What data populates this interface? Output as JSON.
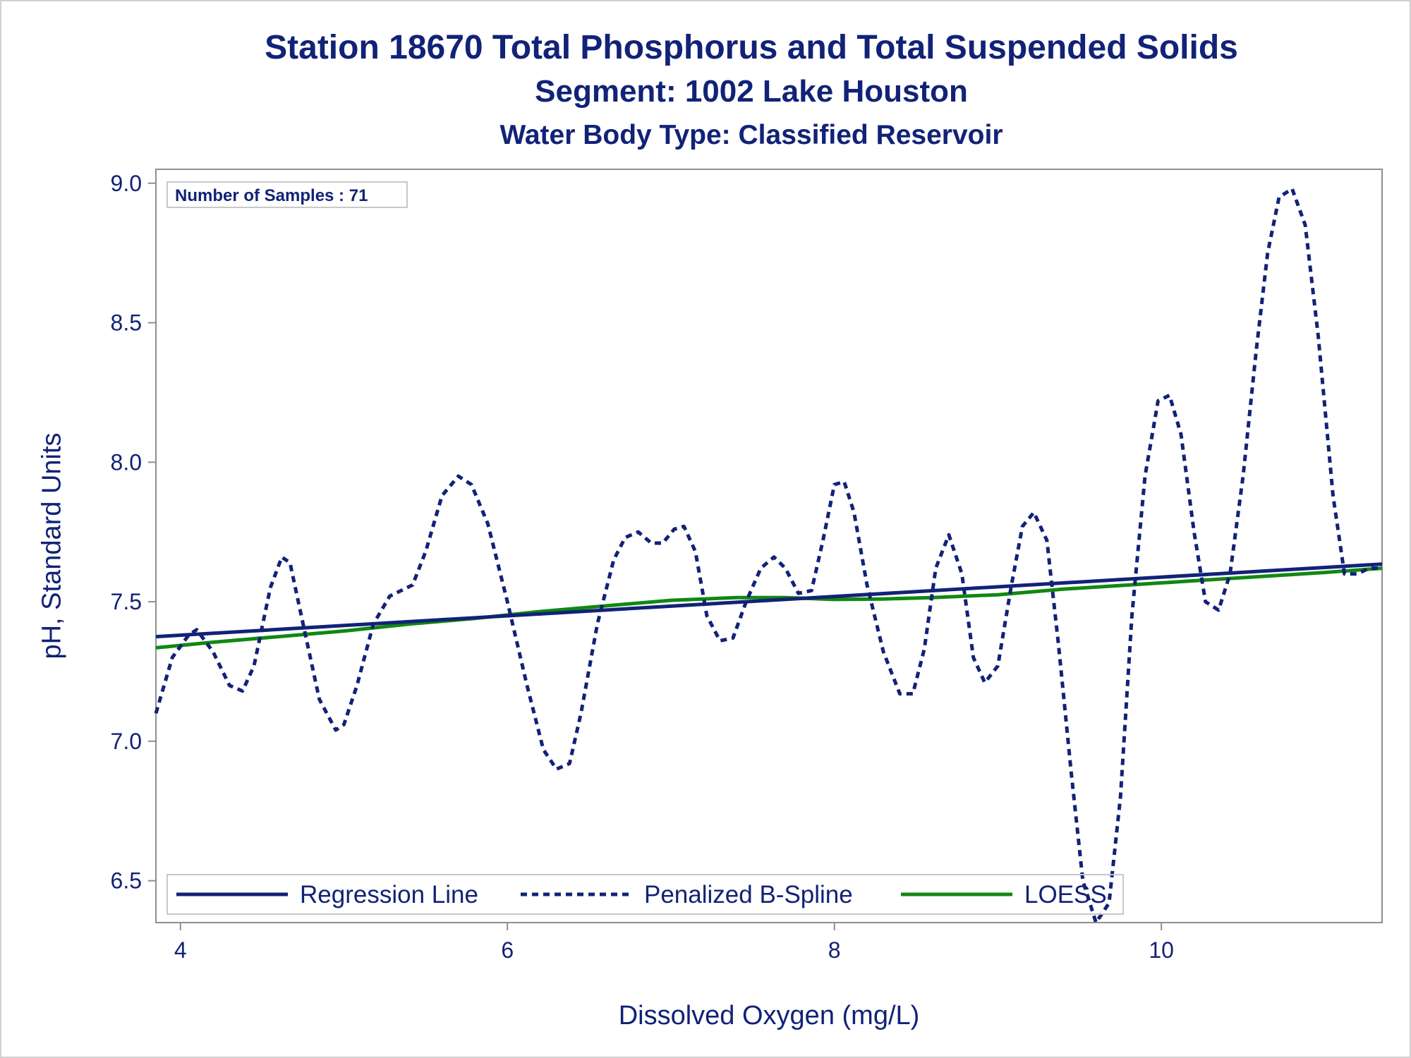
{
  "chart_data": {
    "type": "line",
    "title": "Station 18670  Total Phosphorus and Total Suspended Solids",
    "subtitle": "Segment: 1002  Lake Houston",
    "subtitle2": "Water Body Type: Classified Reservoir",
    "xlabel": "Dissolved Oxygen (mg/L)",
    "ylabel": "pH, Standard Units",
    "xlim": [
      3.85,
      11.35
    ],
    "ylim": [
      6.35,
      9.05
    ],
    "xticks": [
      4,
      6,
      8,
      10
    ],
    "xtick_labels": [
      "4",
      "6",
      "8",
      "10"
    ],
    "yticks": [
      6.5,
      7.0,
      7.5,
      8.0,
      8.5,
      9.0
    ],
    "ytick_labels": [
      "6.5",
      "7.0",
      "7.5",
      "8.0",
      "8.5",
      "9.0"
    ],
    "grid": false,
    "annotation": "Number of Samples : 71",
    "legend_position": "bottom-inside",
    "series": [
      {
        "name": "Regression Line",
        "style": "solid",
        "color": "#112277",
        "x": [
          3.85,
          11.35
        ],
        "y": [
          7.375,
          7.635
        ]
      },
      {
        "name": "Penalized B-Spline",
        "style": "dashed",
        "color": "#112277",
        "x": [
          3.85,
          3.95,
          4.05,
          4.1,
          4.2,
          4.3,
          4.38,
          4.45,
          4.55,
          4.62,
          4.67,
          4.75,
          4.85,
          4.95,
          5.0,
          5.08,
          5.18,
          5.28,
          5.35,
          5.42,
          5.5,
          5.6,
          5.7,
          5.78,
          5.88,
          6.0,
          6.12,
          6.22,
          6.3,
          6.38,
          6.45,
          6.55,
          6.65,
          6.72,
          6.8,
          6.88,
          6.95,
          7.02,
          7.08,
          7.15,
          7.22,
          7.3,
          7.38,
          7.46,
          7.55,
          7.63,
          7.7,
          7.78,
          7.86,
          7.93,
          8.0,
          8.06,
          8.12,
          8.2,
          8.3,
          8.4,
          8.48,
          8.55,
          8.62,
          8.7,
          8.78,
          8.85,
          8.92,
          9.0,
          9.08,
          9.15,
          9.22,
          9.3,
          9.37,
          9.45,
          9.52,
          9.6,
          9.68,
          9.75,
          9.82,
          9.9,
          9.98,
          10.05,
          10.12,
          10.2,
          10.27,
          10.35,
          10.42,
          10.5,
          10.58,
          10.65,
          10.72,
          10.8,
          10.88,
          10.96,
          11.05,
          11.12,
          11.2,
          11.27,
          11.3,
          11.35
        ],
        "y": [
          7.1,
          7.3,
          7.38,
          7.4,
          7.32,
          7.2,
          7.18,
          7.27,
          7.55,
          7.66,
          7.64,
          7.42,
          7.15,
          7.04,
          7.06,
          7.2,
          7.42,
          7.52,
          7.54,
          7.56,
          7.68,
          7.88,
          7.95,
          7.92,
          7.78,
          7.5,
          7.2,
          6.97,
          6.9,
          6.92,
          7.1,
          7.42,
          7.65,
          7.73,
          7.75,
          7.71,
          7.71,
          7.76,
          7.77,
          7.68,
          7.45,
          7.36,
          7.37,
          7.5,
          7.62,
          7.66,
          7.62,
          7.53,
          7.54,
          7.72,
          7.92,
          7.93,
          7.82,
          7.56,
          7.32,
          7.17,
          7.17,
          7.33,
          7.62,
          7.74,
          7.6,
          7.3,
          7.21,
          7.27,
          7.55,
          7.77,
          7.82,
          7.72,
          7.35,
          6.88,
          6.5,
          6.35,
          6.42,
          6.8,
          7.45,
          7.95,
          8.22,
          8.24,
          8.1,
          7.75,
          7.5,
          7.47,
          7.6,
          7.95,
          8.4,
          8.75,
          8.95,
          8.98,
          8.85,
          8.45,
          7.88,
          7.6,
          7.6,
          7.62,
          7.62,
          7.62
        ]
      },
      {
        "name": "LOESS",
        "style": "solid",
        "color": "#118811",
        "x": [
          3.85,
          4.2,
          4.6,
          5.0,
          5.4,
          5.8,
          6.2,
          6.6,
          7.0,
          7.4,
          7.7,
          8.0,
          8.3,
          8.6,
          9.0,
          9.4,
          9.8,
          10.2,
          10.6,
          11.0,
          11.35
        ],
        "y": [
          7.335,
          7.355,
          7.375,
          7.395,
          7.42,
          7.44,
          7.465,
          7.485,
          7.505,
          7.515,
          7.515,
          7.508,
          7.51,
          7.515,
          7.525,
          7.545,
          7.56,
          7.575,
          7.59,
          7.605,
          7.62
        ]
      }
    ]
  }
}
